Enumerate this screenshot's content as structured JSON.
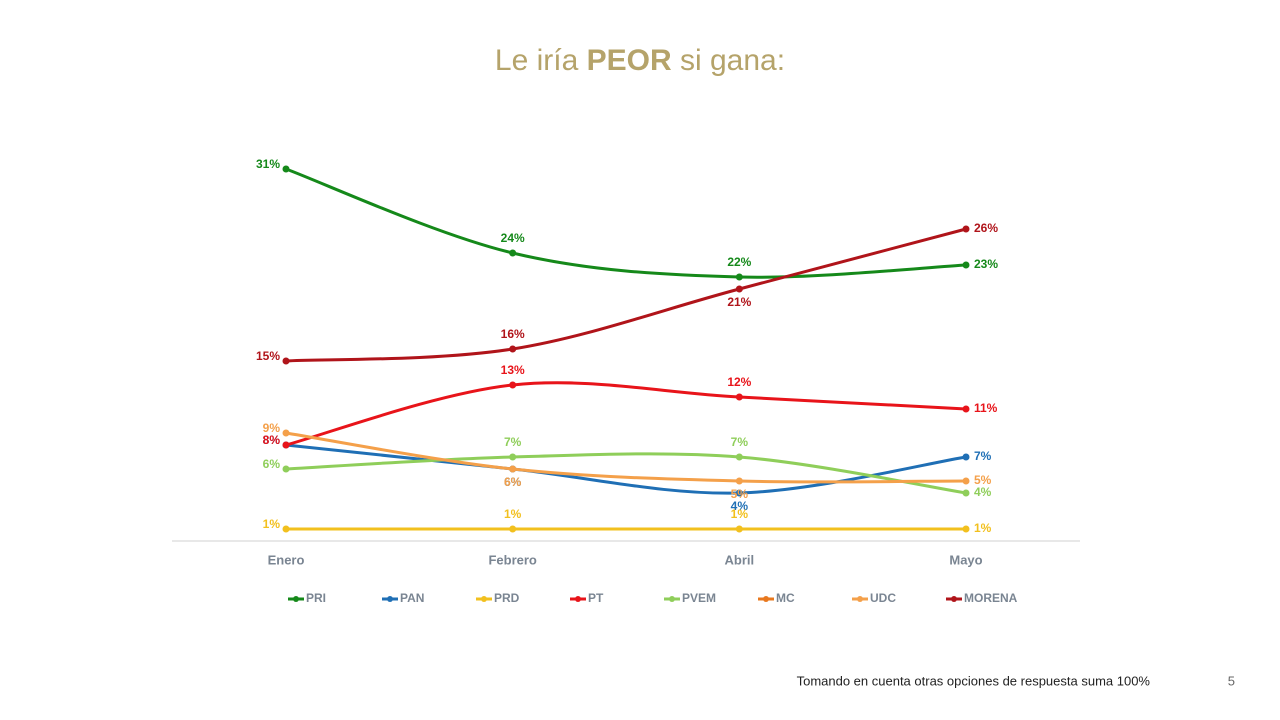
{
  "chart_data": {
    "type": "line",
    "title": [
      "Le iría ",
      "PEOR",
      " si gana:"
    ],
    "categories": [
      "Enero",
      "Febrero",
      "Abril",
      "Mayo"
    ],
    "ylim": [
      0,
      31
    ],
    "series": [
      {
        "name": "PRI",
        "color": "#15891a",
        "values": [
          31,
          24,
          22,
          23
        ],
        "value_labels": [
          "31%",
          "24%",
          "22%",
          "23%"
        ]
      },
      {
        "name": "PAN",
        "color": "#1f6fb5",
        "values": [
          8,
          6,
          4,
          7
        ],
        "value_labels": [
          "8%",
          "6%",
          "4%",
          "7%"
        ]
      },
      {
        "name": "PRD",
        "color": "#f2c01e",
        "values": [
          1,
          1,
          1,
          1
        ],
        "value_labels": [
          "1%",
          "1%",
          "1%",
          "1%"
        ]
      },
      {
        "name": "PT",
        "color": "#e8141a",
        "values": [
          8,
          13,
          12,
          11
        ],
        "value_labels": [
          "8%",
          "13%",
          "12%",
          "11%"
        ]
      },
      {
        "name": "PVEM",
        "color": "#8fce5a",
        "values": [
          6,
          7,
          7,
          4
        ],
        "value_labels": [
          "6%",
          "7%",
          "7%",
          "4%"
        ]
      },
      {
        "name": "MC",
        "color": "#e8781e",
        "values": [
          null,
          null,
          null,
          null
        ],
        "value_labels": [
          null,
          null,
          null,
          null
        ]
      },
      {
        "name": "UDC",
        "color": "#f4a04a",
        "values": [
          9,
          6,
          5,
          5
        ],
        "value_labels": [
          "9%",
          "6%",
          "5%",
          "5%"
        ]
      },
      {
        "name": "MORENA",
        "color": "#b0141a",
        "values": [
          15,
          16,
          21,
          26
        ],
        "value_labels": [
          "15%",
          "16%",
          "21%",
          "26%"
        ]
      }
    ],
    "footnote": "Tomando en cuenta otras opciones de respuesta suma 100%",
    "page_number": "5"
  }
}
